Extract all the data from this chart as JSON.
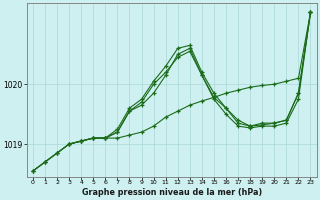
{
  "xlabel": "Graphe pression niveau de la mer (hPa)",
  "xlim": [
    -0.5,
    23.5
  ],
  "ylim": [
    1018.45,
    1021.35
  ],
  "yticks": [
    1019,
    1020
  ],
  "xticks": [
    0,
    1,
    2,
    3,
    4,
    5,
    6,
    7,
    8,
    9,
    10,
    11,
    12,
    13,
    14,
    15,
    16,
    17,
    18,
    19,
    20,
    21,
    22,
    23
  ],
  "bg_color": "#cff0f0",
  "grid_color": "#aad8d8",
  "line_color": "#1a6b1a",
  "line_color2": "#2d8b2d",
  "line1_x": [
    0,
    1,
    2,
    3,
    4,
    5,
    6,
    7,
    8,
    9,
    10,
    11,
    12,
    13,
    14,
    15,
    16,
    17,
    18,
    19,
    20,
    21,
    22,
    23
  ],
  "line1": [
    1018.55,
    1018.7,
    1018.85,
    1019.0,
    1019.05,
    1019.1,
    1019.1,
    1019.1,
    1019.15,
    1019.2,
    1019.3,
    1019.45,
    1019.55,
    1019.65,
    1019.72,
    1019.78,
    1019.85,
    1019.9,
    1019.95,
    1019.98,
    1020.0,
    1020.05,
    1020.1,
    1021.2
  ],
  "line2_x": [
    0,
    1,
    2,
    3,
    4,
    5,
    6,
    7,
    8,
    9,
    10,
    11,
    12,
    13,
    14,
    15,
    16,
    17,
    18,
    19,
    20,
    21,
    22,
    23
  ],
  "line2": [
    1018.55,
    1018.7,
    1018.85,
    1019.0,
    1019.05,
    1019.1,
    1019.1,
    1019.2,
    1019.55,
    1019.65,
    1019.85,
    1020.15,
    1020.5,
    1020.6,
    1020.15,
    1019.75,
    1019.5,
    1019.3,
    1019.27,
    1019.3,
    1019.3,
    1019.35,
    1019.75,
    1021.2
  ],
  "line3_x": [
    0,
    1,
    2,
    3,
    4,
    5,
    6,
    7,
    8,
    9,
    10,
    11,
    12,
    13,
    14,
    15,
    16,
    17,
    18,
    19,
    20,
    21,
    22,
    23
  ],
  "line3": [
    1018.55,
    1018.7,
    1018.85,
    1019.0,
    1019.05,
    1019.1,
    1019.1,
    1019.2,
    1019.55,
    1019.7,
    1020.0,
    1020.2,
    1020.45,
    1020.55,
    1020.15,
    1019.78,
    1019.6,
    1019.35,
    1019.3,
    1019.35,
    1019.35,
    1019.4,
    1019.85,
    1021.2
  ],
  "line4_x": [
    3,
    4,
    5,
    6,
    7,
    8,
    9,
    10,
    11,
    12,
    13,
    14,
    15,
    16,
    17,
    18,
    19,
    20,
    21,
    22,
    23
  ],
  "line4": [
    1019.0,
    1019.05,
    1019.1,
    1019.1,
    1019.25,
    1019.6,
    1019.75,
    1020.05,
    1020.3,
    1020.6,
    1020.65,
    1020.2,
    1019.85,
    1019.6,
    1019.4,
    1019.3,
    1019.32,
    1019.35,
    1019.4,
    1019.85,
    1021.2
  ]
}
